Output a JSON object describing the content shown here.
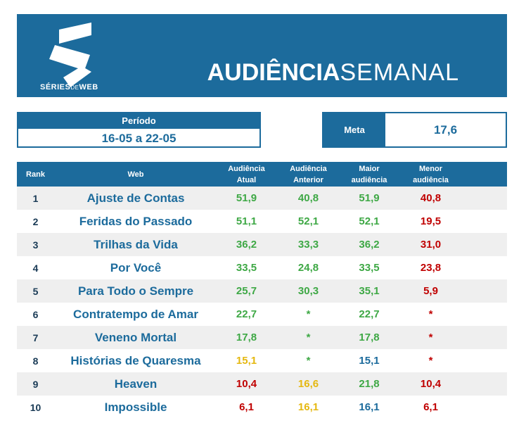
{
  "brand": {
    "logo_main": "SÉRIES",
    "logo_small": "DE",
    "logo_tail": "WEB"
  },
  "title": {
    "bold": "AUDIÊNCIA",
    "light": "SEMANAL"
  },
  "periodo": {
    "label": "Período",
    "value": "16-05 a 22-05"
  },
  "meta": {
    "label": "Meta",
    "value": "17,6"
  },
  "headers": {
    "rank": "Rank",
    "web": "Web",
    "atual": [
      "Audiência",
      "Atual"
    ],
    "anterior": [
      "Audiência",
      "Anterior"
    ],
    "maior": [
      "Maior",
      "audiência"
    ],
    "menor": [
      "Menor",
      "audiência"
    ]
  },
  "colors": {
    "brand_blue": "#1c6b9c",
    "good": "#3ea845",
    "warn": "#e5b810",
    "bad": "#c00000"
  },
  "rows": [
    {
      "rank": "1",
      "web": "Ajuste de Contas",
      "atual": "51,9",
      "atual_color": "green",
      "anterior": "40,8",
      "anterior_color": "green",
      "maior": "51,9",
      "maior_color": "green",
      "menor": "40,8",
      "menor_color": "red"
    },
    {
      "rank": "2",
      "web": "Feridas do Passado",
      "atual": "51,1",
      "atual_color": "green",
      "anterior": "52,1",
      "anterior_color": "green",
      "maior": "52,1",
      "maior_color": "green",
      "menor": "19,5",
      "menor_color": "red"
    },
    {
      "rank": "3",
      "web": "Trilhas da Vida",
      "atual": "36,2",
      "atual_color": "green",
      "anterior": "33,3",
      "anterior_color": "green",
      "maior": "36,2",
      "maior_color": "green",
      "menor": "31,0",
      "menor_color": "red"
    },
    {
      "rank": "4",
      "web": "Por Você",
      "atual": "33,5",
      "atual_color": "green",
      "anterior": "24,8",
      "anterior_color": "green",
      "maior": "33,5",
      "maior_color": "green",
      "menor": "23,8",
      "menor_color": "red"
    },
    {
      "rank": "5",
      "web": "Para Todo o Sempre",
      "atual": "25,7",
      "atual_color": "green",
      "anterior": "30,3",
      "anterior_color": "green",
      "maior": "35,1",
      "maior_color": "green",
      "menor": "5,9",
      "menor_color": "red"
    },
    {
      "rank": "6",
      "web": "Contratempo de Amar",
      "atual": "22,7",
      "atual_color": "green",
      "anterior": "*",
      "anterior_color": "green",
      "maior": "22,7",
      "maior_color": "green",
      "menor": "*",
      "menor_color": "red"
    },
    {
      "rank": "7",
      "web": "Veneno Mortal",
      "atual": "17,8",
      "atual_color": "green",
      "anterior": "*",
      "anterior_color": "green",
      "maior": "17,8",
      "maior_color": "green",
      "menor": "*",
      "menor_color": "red"
    },
    {
      "rank": "8",
      "web": "Histórias de Quaresma",
      "atual": "15,1",
      "atual_color": "yellow",
      "anterior": "*",
      "anterior_color": "green",
      "maior": "15,1",
      "maior_color": "blue",
      "menor": "*",
      "menor_color": "red"
    },
    {
      "rank": "9",
      "web": "Heaven",
      "atual": "10,4",
      "atual_color": "red",
      "anterior": "16,6",
      "anterior_color": "yellow",
      "maior": "21,8",
      "maior_color": "green",
      "menor": "10,4",
      "menor_color": "red"
    },
    {
      "rank": "10",
      "web": "Impossible",
      "atual": "6,1",
      "atual_color": "red",
      "anterior": "16,1",
      "anterior_color": "yellow",
      "maior": "16,1",
      "maior_color": "blue",
      "menor": "6,1",
      "menor_color": "red"
    }
  ]
}
